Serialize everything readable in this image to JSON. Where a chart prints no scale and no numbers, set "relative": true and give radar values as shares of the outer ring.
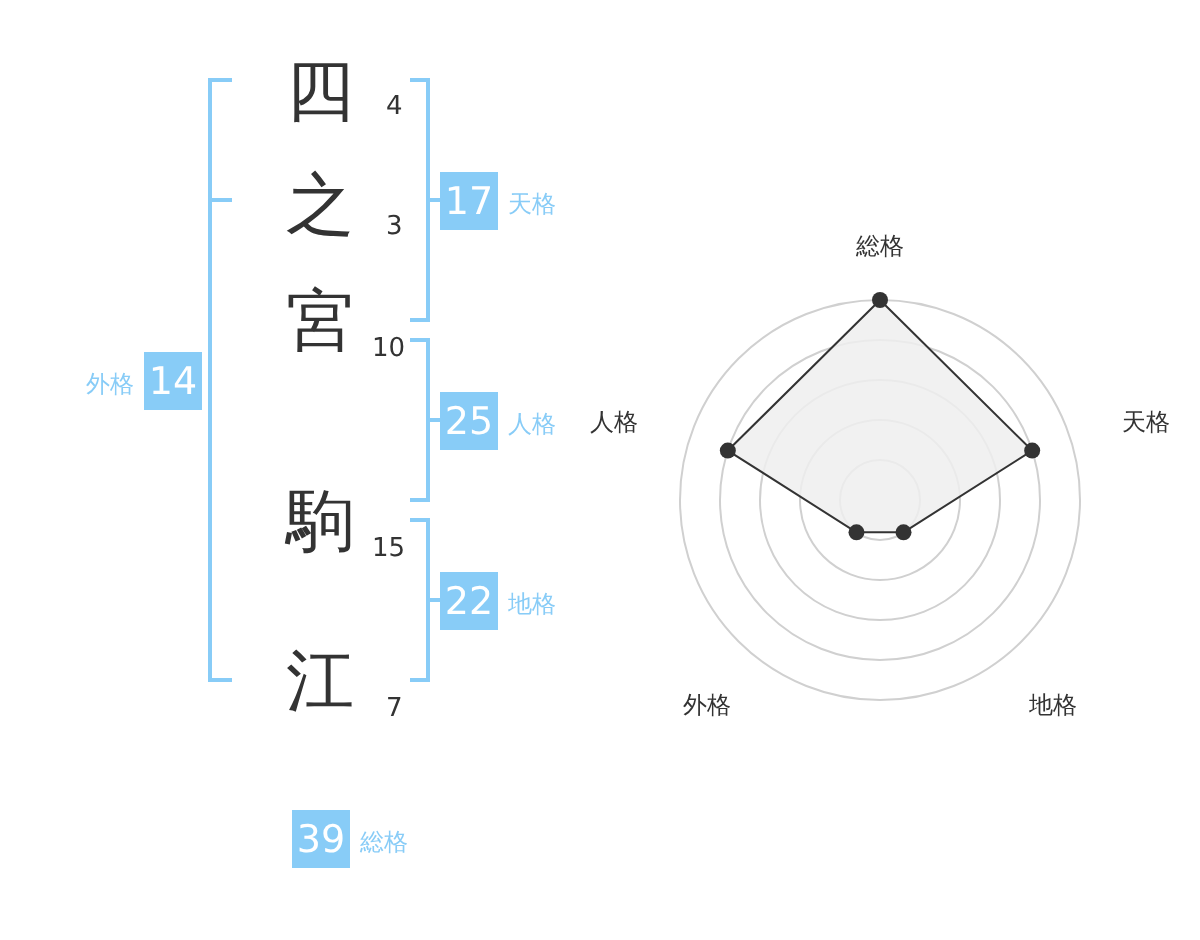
{
  "chart_data": [
    {
      "type": "other",
      "annotations": [
        "四",
        "4",
        "之",
        "3",
        "宮",
        "10",
        "駒",
        "15",
        "江",
        "7",
        "17",
        "天格",
        "25",
        "人格",
        "22",
        "地格",
        "14",
        "外格",
        "39",
        "総格"
      ]
    },
    {
      "type": "radar",
      "relative": true,
      "categories": [
        "総格",
        "天格",
        "地格",
        "外格",
        "人格"
      ],
      "grid": true,
      "marker": "circle",
      "series": [
        {
          "color": "#333333",
          "values": [
            1,
            0.8,
            0.2,
            0.2,
            0.8
          ]
        }
      ]
    }
  ]
}
